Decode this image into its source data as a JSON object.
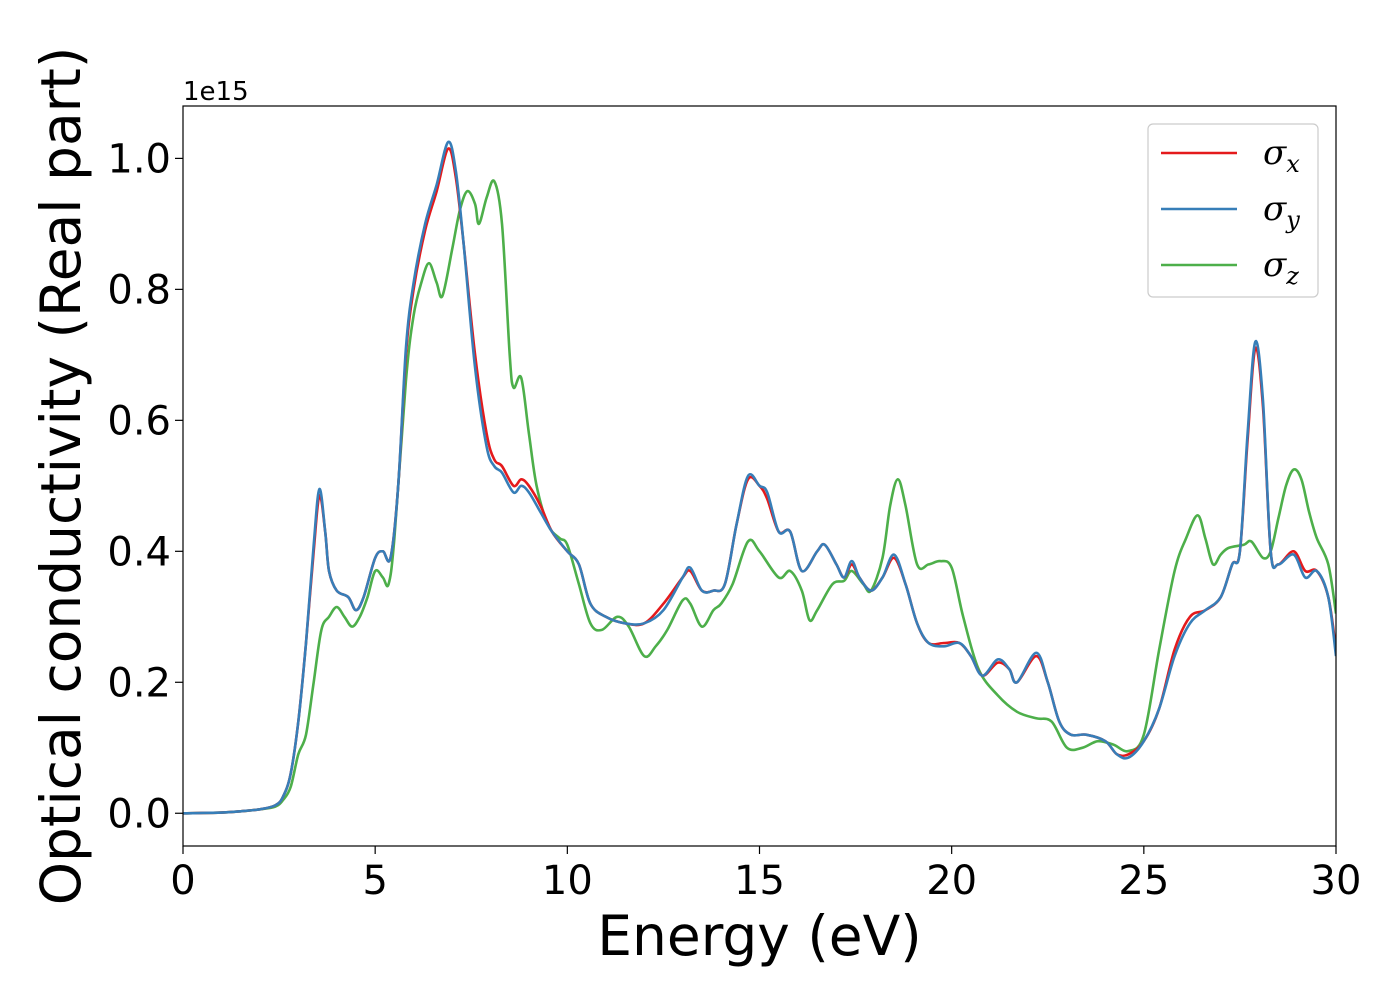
{
  "chart_data": {
    "type": "line",
    "title": "",
    "xlabel": "Energy (eV)",
    "ylabel": "Optical conductivity (Real part)",
    "y_offset_label": "1e15",
    "xlim": [
      0,
      30
    ],
    "ylim": [
      -0.05,
      1.08
    ],
    "xticks": [
      0,
      5,
      10,
      15,
      20,
      25,
      30
    ],
    "xtick_labels": [
      "0",
      "5",
      "10",
      "15",
      "20",
      "25",
      "30"
    ],
    "yticks": [
      0.0,
      0.2,
      0.4,
      0.6,
      0.8,
      1.0
    ],
    "ytick_labels": [
      "0.0",
      "0.2",
      "0.4",
      "0.6",
      "0.8",
      "1.0"
    ],
    "grid": false,
    "legend_position": "top-right",
    "series": [
      {
        "name": "σx",
        "legend_base": "σ",
        "legend_sub": "x",
        "color": "#e41a1c",
        "points": [
          [
            0,
            0
          ],
          [
            1,
            0.001
          ],
          [
            1.5,
            0.003
          ],
          [
            2,
            0.006
          ],
          [
            2.4,
            0.012
          ],
          [
            2.6,
            0.025
          ],
          [
            2.8,
            0.06
          ],
          [
            3,
            0.14
          ],
          [
            3.2,
            0.26
          ],
          [
            3.4,
            0.4
          ],
          [
            3.55,
            0.485
          ],
          [
            3.7,
            0.43
          ],
          [
            3.8,
            0.37
          ],
          [
            4,
            0.34
          ],
          [
            4.3,
            0.33
          ],
          [
            4.5,
            0.31
          ],
          [
            4.7,
            0.33
          ],
          [
            5,
            0.39
          ],
          [
            5.2,
            0.4
          ],
          [
            5.4,
            0.39
          ],
          [
            5.6,
            0.5
          ],
          [
            5.8,
            0.7
          ],
          [
            6,
            0.8
          ],
          [
            6.3,
            0.89
          ],
          [
            6.6,
            0.95
          ],
          [
            6.9,
            1.015
          ],
          [
            7.1,
            0.97
          ],
          [
            7.3,
            0.87
          ],
          [
            7.6,
            0.7
          ],
          [
            7.9,
            0.58
          ],
          [
            8.1,
            0.54
          ],
          [
            8.3,
            0.53
          ],
          [
            8.6,
            0.5
          ],
          [
            8.8,
            0.51
          ],
          [
            9,
            0.5
          ],
          [
            9.3,
            0.47
          ],
          [
            9.6,
            0.43
          ],
          [
            10,
            0.4
          ],
          [
            10.3,
            0.38
          ],
          [
            10.6,
            0.32
          ],
          [
            11,
            0.3
          ],
          [
            11.5,
            0.29
          ],
          [
            12,
            0.29
          ],
          [
            12.5,
            0.32
          ],
          [
            13,
            0.36
          ],
          [
            13.2,
            0.37
          ],
          [
            13.5,
            0.34
          ],
          [
            13.8,
            0.34
          ],
          [
            14.1,
            0.35
          ],
          [
            14.4,
            0.44
          ],
          [
            14.7,
            0.51
          ],
          [
            15,
            0.5
          ],
          [
            15.2,
            0.48
          ],
          [
            15.5,
            0.43
          ],
          [
            15.8,
            0.43
          ],
          [
            16.1,
            0.37
          ],
          [
            16.5,
            0.4
          ],
          [
            16.7,
            0.41
          ],
          [
            17,
            0.38
          ],
          [
            17.2,
            0.36
          ],
          [
            17.4,
            0.38
          ],
          [
            17.6,
            0.36
          ],
          [
            17.9,
            0.34
          ],
          [
            18.2,
            0.36
          ],
          [
            18.5,
            0.39
          ],
          [
            18.8,
            0.35
          ],
          [
            19.1,
            0.29
          ],
          [
            19.4,
            0.26
          ],
          [
            19.8,
            0.26
          ],
          [
            20.2,
            0.26
          ],
          [
            20.5,
            0.24
          ],
          [
            20.8,
            0.21
          ],
          [
            21.2,
            0.23
          ],
          [
            21.5,
            0.22
          ],
          [
            21.7,
            0.2
          ],
          [
            22.2,
            0.24
          ],
          [
            22.5,
            0.2
          ],
          [
            22.8,
            0.14
          ],
          [
            23.1,
            0.12
          ],
          [
            23.5,
            0.12
          ],
          [
            24,
            0.11
          ],
          [
            24.3,
            0.09
          ],
          [
            24.6,
            0.09
          ],
          [
            25,
            0.11
          ],
          [
            25.4,
            0.16
          ],
          [
            25.8,
            0.25
          ],
          [
            26.2,
            0.3
          ],
          [
            26.6,
            0.31
          ],
          [
            27,
            0.33
          ],
          [
            27.3,
            0.38
          ],
          [
            27.5,
            0.4
          ],
          [
            27.7,
            0.57
          ],
          [
            27.9,
            0.71
          ],
          [
            28.1,
            0.62
          ],
          [
            28.3,
            0.4
          ],
          [
            28.5,
            0.38
          ],
          [
            28.9,
            0.4
          ],
          [
            29.2,
            0.37
          ],
          [
            29.5,
            0.37
          ],
          [
            29.8,
            0.33
          ],
          [
            30,
            0.25
          ]
        ]
      },
      {
        "name": "σy",
        "legend_base": "σ",
        "legend_sub": "y",
        "color": "#377eb8",
        "points": [
          [
            0,
            0
          ],
          [
            1,
            0.001
          ],
          [
            1.5,
            0.003
          ],
          [
            2,
            0.006
          ],
          [
            2.4,
            0.012
          ],
          [
            2.6,
            0.025
          ],
          [
            2.8,
            0.06
          ],
          [
            3,
            0.14
          ],
          [
            3.2,
            0.26
          ],
          [
            3.4,
            0.41
          ],
          [
            3.55,
            0.495
          ],
          [
            3.7,
            0.43
          ],
          [
            3.8,
            0.37
          ],
          [
            4,
            0.34
          ],
          [
            4.3,
            0.33
          ],
          [
            4.5,
            0.31
          ],
          [
            4.7,
            0.33
          ],
          [
            5,
            0.39
          ],
          [
            5.2,
            0.4
          ],
          [
            5.4,
            0.39
          ],
          [
            5.6,
            0.5
          ],
          [
            5.8,
            0.71
          ],
          [
            6,
            0.81
          ],
          [
            6.3,
            0.9
          ],
          [
            6.6,
            0.96
          ],
          [
            6.9,
            1.025
          ],
          [
            7.1,
            0.98
          ],
          [
            7.3,
            0.87
          ],
          [
            7.6,
            0.68
          ],
          [
            7.9,
            0.56
          ],
          [
            8.1,
            0.53
          ],
          [
            8.3,
            0.52
          ],
          [
            8.6,
            0.49
          ],
          [
            8.8,
            0.5
          ],
          [
            9,
            0.49
          ],
          [
            9.3,
            0.46
          ],
          [
            9.6,
            0.43
          ],
          [
            10,
            0.4
          ],
          [
            10.3,
            0.38
          ],
          [
            10.6,
            0.32
          ],
          [
            11,
            0.3
          ],
          [
            11.5,
            0.29
          ],
          [
            12,
            0.29
          ],
          [
            12.5,
            0.31
          ],
          [
            13,
            0.36
          ],
          [
            13.2,
            0.375
          ],
          [
            13.5,
            0.34
          ],
          [
            13.8,
            0.34
          ],
          [
            14.1,
            0.35
          ],
          [
            14.4,
            0.44
          ],
          [
            14.7,
            0.515
          ],
          [
            15,
            0.5
          ],
          [
            15.2,
            0.49
          ],
          [
            15.5,
            0.43
          ],
          [
            15.8,
            0.43
          ],
          [
            16.1,
            0.37
          ],
          [
            16.5,
            0.4
          ],
          [
            16.7,
            0.41
          ],
          [
            17,
            0.38
          ],
          [
            17.2,
            0.36
          ],
          [
            17.4,
            0.385
          ],
          [
            17.6,
            0.36
          ],
          [
            17.9,
            0.34
          ],
          [
            18.2,
            0.36
          ],
          [
            18.5,
            0.395
          ],
          [
            18.8,
            0.35
          ],
          [
            19.1,
            0.29
          ],
          [
            19.4,
            0.26
          ],
          [
            19.8,
            0.255
          ],
          [
            20.2,
            0.26
          ],
          [
            20.5,
            0.24
          ],
          [
            20.8,
            0.21
          ],
          [
            21.2,
            0.235
          ],
          [
            21.5,
            0.22
          ],
          [
            21.7,
            0.2
          ],
          [
            22.2,
            0.245
          ],
          [
            22.5,
            0.2
          ],
          [
            22.8,
            0.14
          ],
          [
            23.1,
            0.12
          ],
          [
            23.5,
            0.12
          ],
          [
            24,
            0.11
          ],
          [
            24.3,
            0.09
          ],
          [
            24.6,
            0.085
          ],
          [
            25,
            0.11
          ],
          [
            25.4,
            0.16
          ],
          [
            25.8,
            0.24
          ],
          [
            26.2,
            0.29
          ],
          [
            26.6,
            0.31
          ],
          [
            27,
            0.33
          ],
          [
            27.3,
            0.38
          ],
          [
            27.5,
            0.4
          ],
          [
            27.7,
            0.58
          ],
          [
            27.9,
            0.72
          ],
          [
            28.1,
            0.63
          ],
          [
            28.3,
            0.4
          ],
          [
            28.5,
            0.38
          ],
          [
            28.9,
            0.395
          ],
          [
            29.2,
            0.36
          ],
          [
            29.5,
            0.37
          ],
          [
            29.8,
            0.33
          ],
          [
            30,
            0.24
          ]
        ]
      },
      {
        "name": "σz",
        "legend_base": "σ",
        "legend_sub": "z",
        "color": "#4daf4a",
        "points": [
          [
            0,
            0
          ],
          [
            1,
            0.001
          ],
          [
            1.5,
            0.003
          ],
          [
            2,
            0.006
          ],
          [
            2.4,
            0.01
          ],
          [
            2.6,
            0.02
          ],
          [
            2.8,
            0.04
          ],
          [
            3,
            0.09
          ],
          [
            3.2,
            0.12
          ],
          [
            3.4,
            0.2
          ],
          [
            3.6,
            0.28
          ],
          [
            3.8,
            0.3
          ],
          [
            4,
            0.315
          ],
          [
            4.2,
            0.3
          ],
          [
            4.4,
            0.285
          ],
          [
            4.6,
            0.3
          ],
          [
            4.8,
            0.33
          ],
          [
            5,
            0.37
          ],
          [
            5.2,
            0.36
          ],
          [
            5.35,
            0.35
          ],
          [
            5.5,
            0.42
          ],
          [
            5.8,
            0.66
          ],
          [
            6,
            0.76
          ],
          [
            6.2,
            0.81
          ],
          [
            6.4,
            0.84
          ],
          [
            6.6,
            0.81
          ],
          [
            6.75,
            0.79
          ],
          [
            7,
            0.86
          ],
          [
            7.2,
            0.92
          ],
          [
            7.4,
            0.95
          ],
          [
            7.6,
            0.93
          ],
          [
            7.7,
            0.9
          ],
          [
            7.9,
            0.94
          ],
          [
            8.1,
            0.965
          ],
          [
            8.3,
            0.9
          ],
          [
            8.5,
            0.7
          ],
          [
            8.6,
            0.65
          ],
          [
            8.8,
            0.665
          ],
          [
            9,
            0.58
          ],
          [
            9.2,
            0.5
          ],
          [
            9.5,
            0.44
          ],
          [
            9.8,
            0.42
          ],
          [
            10,
            0.41
          ],
          [
            10.3,
            0.35
          ],
          [
            10.6,
            0.29
          ],
          [
            10.9,
            0.28
          ],
          [
            11.3,
            0.3
          ],
          [
            11.6,
            0.285
          ],
          [
            12,
            0.24
          ],
          [
            12.3,
            0.255
          ],
          [
            12.6,
            0.28
          ],
          [
            13,
            0.325
          ],
          [
            13.2,
            0.32
          ],
          [
            13.5,
            0.285
          ],
          [
            13.8,
            0.31
          ],
          [
            14,
            0.32
          ],
          [
            14.3,
            0.35
          ],
          [
            14.7,
            0.415
          ],
          [
            15,
            0.4
          ],
          [
            15.5,
            0.36
          ],
          [
            15.8,
            0.37
          ],
          [
            16.1,
            0.34
          ],
          [
            16.3,
            0.295
          ],
          [
            16.5,
            0.31
          ],
          [
            16.9,
            0.35
          ],
          [
            17.2,
            0.355
          ],
          [
            17.4,
            0.37
          ],
          [
            17.7,
            0.35
          ],
          [
            17.9,
            0.34
          ],
          [
            18.2,
            0.39
          ],
          [
            18.4,
            0.47
          ],
          [
            18.6,
            0.51
          ],
          [
            18.8,
            0.47
          ],
          [
            19.1,
            0.38
          ],
          [
            19.4,
            0.38
          ],
          [
            19.7,
            0.385
          ],
          [
            20,
            0.375
          ],
          [
            20.3,
            0.3
          ],
          [
            20.7,
            0.22
          ],
          [
            21.2,
            0.18
          ],
          [
            21.7,
            0.155
          ],
          [
            22.2,
            0.145
          ],
          [
            22.6,
            0.14
          ],
          [
            23,
            0.1
          ],
          [
            23.4,
            0.1
          ],
          [
            23.8,
            0.11
          ],
          [
            24.2,
            0.105
          ],
          [
            24.6,
            0.095
          ],
          [
            25,
            0.12
          ],
          [
            25.4,
            0.25
          ],
          [
            25.8,
            0.37
          ],
          [
            26.1,
            0.42
          ],
          [
            26.4,
            0.455
          ],
          [
            26.6,
            0.42
          ],
          [
            26.8,
            0.38
          ],
          [
            27,
            0.395
          ],
          [
            27.2,
            0.405
          ],
          [
            27.6,
            0.41
          ],
          [
            27.8,
            0.415
          ],
          [
            28.1,
            0.39
          ],
          [
            28.3,
            0.4
          ],
          [
            28.5,
            0.45
          ],
          [
            28.7,
            0.5
          ],
          [
            28.9,
            0.525
          ],
          [
            29.1,
            0.51
          ],
          [
            29.3,
            0.46
          ],
          [
            29.5,
            0.42
          ],
          [
            29.8,
            0.38
          ],
          [
            30,
            0.305
          ]
        ]
      }
    ]
  }
}
